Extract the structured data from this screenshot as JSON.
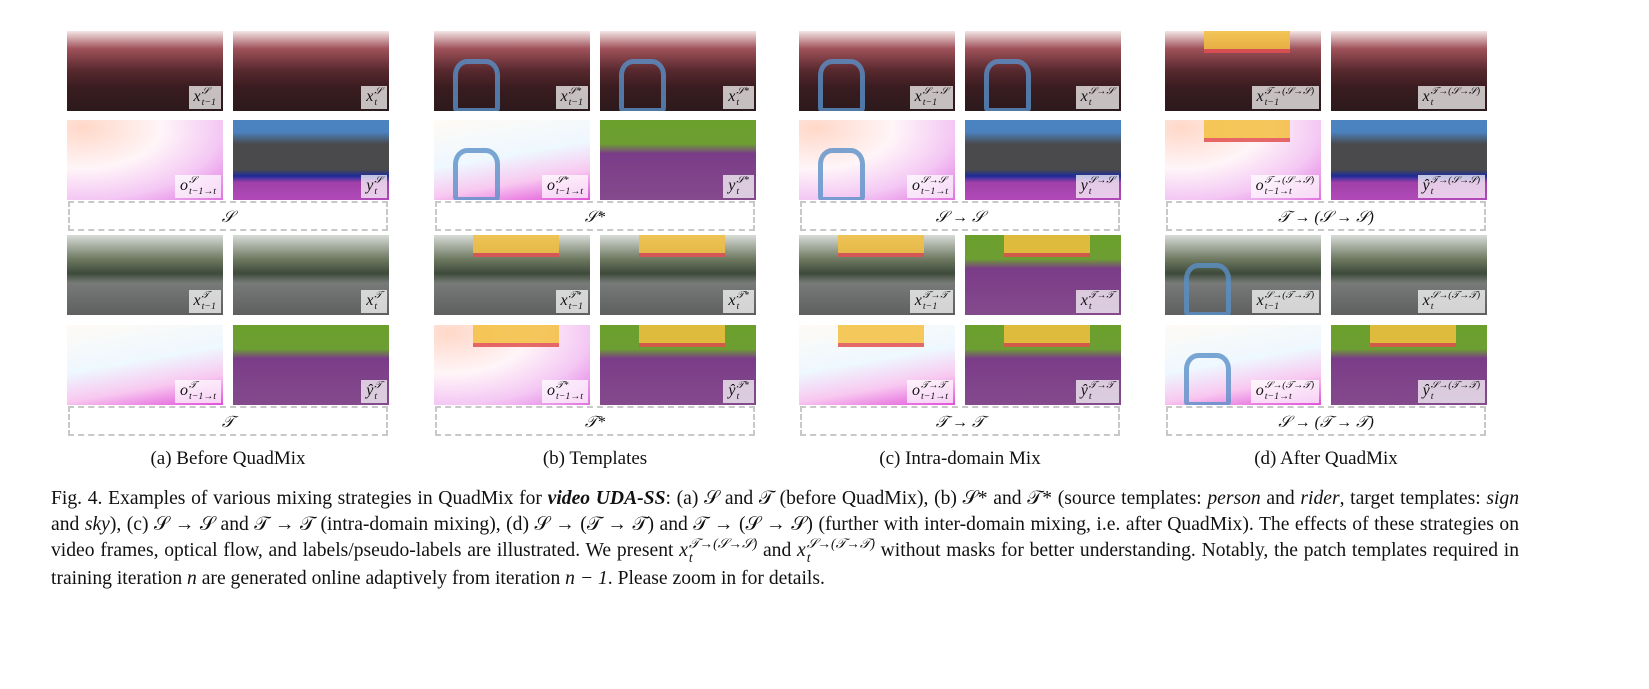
{
  "panels": [
    {
      "subcaption": "(a) Before QuadMix",
      "domains": [
        "𝒮",
        "𝒯"
      ],
      "images": [
        [
          {
            "base": "x",
            "sup": "𝒮",
            "sub": "t−1"
          },
          {
            "base": "x",
            "sup": "𝒮",
            "sub": "t"
          }
        ],
        [
          {
            "base": "o",
            "sup": "𝒮",
            "sub": "t−1→t"
          },
          {
            "base": "y",
            "sup": "𝒮",
            "sub": "t"
          }
        ],
        [
          {
            "base": "x",
            "sup": "𝒯",
            "sub": "t−1"
          },
          {
            "base": "x",
            "sup": "𝒯",
            "sub": "t"
          }
        ],
        [
          {
            "base": "o",
            "sup": "𝒯",
            "sub": "t−1→t"
          },
          {
            "base": "ŷ",
            "sup": "𝒯",
            "sub": "t"
          }
        ]
      ]
    },
    {
      "subcaption": "(b) Templates",
      "domains": [
        "𝒮*",
        "𝒯*"
      ],
      "images": [
        [
          {
            "base": "x",
            "sup": "𝒮*",
            "sub": "t−1"
          },
          {
            "base": "x",
            "sup": "𝒮*",
            "sub": "t"
          }
        ],
        [
          {
            "base": "o",
            "sup": "𝒮*",
            "sub": "t−1→t"
          },
          {
            "base": "y",
            "sup": "𝒮*",
            "sub": "t"
          }
        ],
        [
          {
            "base": "x",
            "sup": "𝒯*",
            "sub": "t−1"
          },
          {
            "base": "x",
            "sup": "𝒯*",
            "sub": "t"
          }
        ],
        [
          {
            "base": "o",
            "sup": "𝒯*",
            "sub": "t−1→t"
          },
          {
            "base": "ŷ",
            "sup": "𝒯*",
            "sub": "t"
          }
        ]
      ]
    },
    {
      "subcaption": "(c) Intra-domain Mix",
      "domains": [
        "𝒮 → 𝒮",
        "𝒯 → 𝒯"
      ],
      "images": [
        [
          {
            "base": "x",
            "sup": "𝒮→𝒮",
            "sub": "t−1"
          },
          {
            "base": "x",
            "sup": "𝒮→𝒮",
            "sub": "t"
          }
        ],
        [
          {
            "base": "o",
            "sup": "𝒮→𝒮",
            "sub": "t−1→t"
          },
          {
            "base": "y",
            "sup": "𝒮→𝒮",
            "sub": "t"
          }
        ],
        [
          {
            "base": "x",
            "sup": "𝒯→𝒯",
            "sub": "t−1"
          },
          {
            "base": "x",
            "sup": "𝒯→𝒯",
            "sub": "t"
          }
        ],
        [
          {
            "base": "o",
            "sup": "𝒯→𝒯",
            "sub": "t−1→t"
          },
          {
            "base": "ŷ",
            "sup": "𝒯→𝒯",
            "sub": "t"
          }
        ]
      ]
    },
    {
      "subcaption": "(d) After QuadMix",
      "domains": [
        "𝒯 → (𝒮 → 𝒮)",
        "𝒮 → (𝒯 → 𝒯)"
      ],
      "images": [
        [
          {
            "base": "x",
            "sup": "𝒯→(𝒮→𝒮)",
            "sub": "t−1"
          },
          {
            "base": "x",
            "sup": "𝒯→(𝒮→𝒮)",
            "sub": "t"
          }
        ],
        [
          {
            "base": "o",
            "sup": "𝒯→(𝒮→𝒮)",
            "sub": "t−1→t"
          },
          {
            "base": "ŷ",
            "sup": "𝒯→(𝒮→𝒮)",
            "sub": "t"
          }
        ],
        [
          {
            "base": "x",
            "sup": "𝒮→(𝒯→𝒯)",
            "sub": "t−1"
          },
          {
            "base": "x",
            "sup": "𝒮→(𝒯→𝒯)",
            "sub": "t"
          }
        ],
        [
          {
            "base": "o",
            "sup": "𝒮→(𝒯→𝒯)",
            "sub": "t−1→t"
          },
          {
            "base": "ŷ",
            "sup": "𝒮→(𝒯→𝒯)",
            "sub": "t"
          }
        ]
      ]
    }
  ],
  "caption": [
    {
      "text": "Fig. 4.  Examples of various mixing strategies in QuadMix for "
    },
    {
      "text": "video UDA-SS",
      "style": "bi"
    },
    {
      "text": ": (a) 𝒮 and 𝒯 (before QuadMix), (b) 𝒮* and 𝒯* (source templates: "
    },
    {
      "text": "person",
      "style": "i"
    },
    {
      "text": " and "
    },
    {
      "text": "rider",
      "style": "i"
    },
    {
      "text": ", target templates: "
    },
    {
      "text": "sign",
      "style": "i"
    },
    {
      "text": " and "
    },
    {
      "text": "sky",
      "style": "i"
    },
    {
      "text": "), (c) 𝒮 → 𝒮 and 𝒯 → 𝒯 (intra-domain mixing), (d) 𝒮 → (𝒯 → 𝒯) and 𝒯 → (𝒮 → 𝒮) (further with inter-domain mixing, i.e. after QuadMix). The effects of these strategies on video frames, optical flow, and labels/pseudo-labels are illustrated. We present "
    },
    {
      "base": "x",
      "sup": "𝒯→(𝒮→𝒮)",
      "sub": "t"
    },
    {
      "text": " and "
    },
    {
      "base": "x",
      "sup": "𝒮→(𝒯→𝒯)",
      "sub": "t"
    },
    {
      "text": " without masks for better understanding. Notably, the patch templates required in training iteration "
    },
    {
      "text": "n",
      "style": "i"
    },
    {
      "text": " are generated online adaptively from iteration "
    },
    {
      "text": "n − 1",
      "style": "i"
    },
    {
      "text": ". Please zoom in for details."
    }
  ]
}
